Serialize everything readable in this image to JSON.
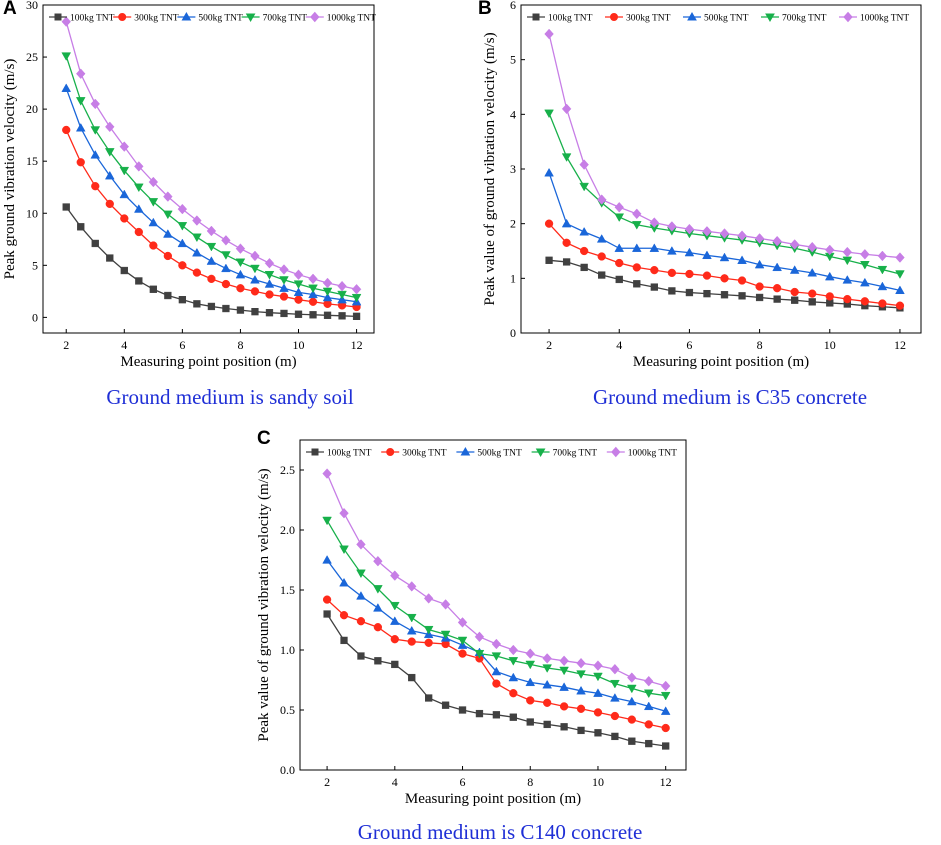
{
  "figure": {
    "panels": [
      {
        "letter": "A",
        "caption": "Ground medium is sandy soil"
      },
      {
        "letter": "B",
        "caption": "Ground medium is C35 concrete"
      },
      {
        "letter": "C",
        "caption": "Ground medium is C140 concrete"
      }
    ]
  },
  "series_style": [
    {
      "name": "100kg TNT",
      "color": "#404040",
      "marker": "square"
    },
    {
      "name": "300kg TNT",
      "color": "#ff2a1a",
      "marker": "circle"
    },
    {
      "name": "500kg TNT",
      "color": "#1a66d9",
      "marker": "triangle-up"
    },
    {
      "name": "700kg TNT",
      "color": "#17b04a",
      "marker": "triangle-down"
    },
    {
      "name": "1000kg TNT",
      "color": "#c77ee6",
      "marker": "diamond"
    }
  ],
  "chart_data": [
    {
      "type": "line",
      "panel": "A",
      "title": "",
      "xlabel": "Measuring point position (m)",
      "ylabel": "Peak ground vibration velocity (m/s)",
      "xlim": [
        1.2,
        12.6
      ],
      "ylim": [
        -1.5,
        30
      ],
      "xticks": [
        2,
        4,
        6,
        8,
        10,
        12
      ],
      "yticks": [
        0,
        5,
        10,
        15,
        20,
        25,
        30
      ],
      "x": [
        2,
        2.5,
        3,
        3.5,
        4,
        4.5,
        5,
        5.5,
        6,
        6.5,
        7,
        7.5,
        8,
        8.5,
        9,
        9.5,
        10,
        10.5,
        11,
        11.5,
        12
      ],
      "series": [
        {
          "name": "100kg TNT",
          "values": [
            10.6,
            8.7,
            7.1,
            5.7,
            4.5,
            3.5,
            2.7,
            2.1,
            1.7,
            1.3,
            1.05,
            0.85,
            0.7,
            0.55,
            0.45,
            0.38,
            0.3,
            0.25,
            0.2,
            0.15,
            0.1
          ]
        },
        {
          "name": "300kg TNT",
          "values": [
            18.0,
            14.9,
            12.6,
            10.9,
            9.5,
            8.2,
            6.9,
            5.9,
            5.0,
            4.3,
            3.7,
            3.2,
            2.8,
            2.5,
            2.2,
            2.0,
            1.7,
            1.5,
            1.3,
            1.15,
            1.0
          ]
        },
        {
          "name": "500kg TNT",
          "values": [
            22.0,
            18.2,
            15.6,
            13.6,
            11.8,
            10.4,
            9.1,
            8.0,
            7.1,
            6.2,
            5.4,
            4.7,
            4.1,
            3.6,
            3.2,
            2.8,
            2.4,
            2.2,
            1.9,
            1.7,
            1.5
          ]
        },
        {
          "name": "700kg TNT",
          "values": [
            25.1,
            20.8,
            18.0,
            15.9,
            14.1,
            12.5,
            11.1,
            9.9,
            8.8,
            7.7,
            6.8,
            6.0,
            5.3,
            4.7,
            4.1,
            3.6,
            3.2,
            2.8,
            2.5,
            2.2,
            1.9
          ]
        },
        {
          "name": "1000kg TNT",
          "values": [
            28.4,
            23.4,
            20.5,
            18.3,
            16.4,
            14.5,
            13.0,
            11.6,
            10.4,
            9.3,
            8.3,
            7.4,
            6.6,
            5.9,
            5.2,
            4.6,
            4.1,
            3.7,
            3.3,
            3.0,
            2.7
          ]
        }
      ]
    },
    {
      "type": "line",
      "panel": "B",
      "title": "",
      "xlabel": "Measuring point position (m)",
      "ylabel": "Peak value of ground vibration velocity (m/s)",
      "xlim": [
        1.2,
        12.6
      ],
      "ylim": [
        0,
        6
      ],
      "xticks": [
        2,
        4,
        6,
        8,
        10,
        12
      ],
      "yticks": [
        0,
        1,
        2,
        3,
        4,
        5,
        6
      ],
      "x": [
        2,
        2.5,
        3,
        3.5,
        4,
        4.5,
        5,
        5.5,
        6,
        6.5,
        7,
        7.5,
        8,
        8.5,
        9,
        9.5,
        10,
        10.5,
        11,
        11.5,
        12
      ],
      "series": [
        {
          "name": "100kg TNT",
          "values": [
            1.33,
            1.3,
            1.2,
            1.06,
            0.98,
            0.9,
            0.84,
            0.77,
            0.74,
            0.72,
            0.7,
            0.68,
            0.65,
            0.62,
            0.6,
            0.57,
            0.55,
            0.53,
            0.5,
            0.48,
            0.46
          ]
        },
        {
          "name": "300kg TNT",
          "values": [
            2.0,
            1.65,
            1.5,
            1.4,
            1.28,
            1.2,
            1.15,
            1.1,
            1.08,
            1.05,
            1.0,
            0.96,
            0.85,
            0.82,
            0.75,
            0.72,
            0.67,
            0.62,
            0.58,
            0.54,
            0.5
          ]
        },
        {
          "name": "500kg TNT",
          "values": [
            2.93,
            2.0,
            1.85,
            1.72,
            1.55,
            1.55,
            1.55,
            1.5,
            1.47,
            1.42,
            1.38,
            1.33,
            1.25,
            1.2,
            1.15,
            1.1,
            1.03,
            0.97,
            0.92,
            0.85,
            0.78
          ]
        },
        {
          "name": "700kg TNT",
          "values": [
            4.02,
            3.22,
            2.68,
            2.38,
            2.12,
            1.98,
            1.92,
            1.87,
            1.82,
            1.78,
            1.74,
            1.7,
            1.65,
            1.6,
            1.55,
            1.48,
            1.4,
            1.33,
            1.25,
            1.16,
            1.08
          ]
        },
        {
          "name": "1000kg TNT",
          "values": [
            5.47,
            4.1,
            3.08,
            2.44,
            2.3,
            2.18,
            2.02,
            1.95,
            1.9,
            1.86,
            1.82,
            1.78,
            1.73,
            1.68,
            1.62,
            1.57,
            1.52,
            1.48,
            1.44,
            1.41,
            1.38
          ]
        }
      ]
    },
    {
      "type": "line",
      "panel": "C",
      "title": "",
      "xlabel": "Measuring point position (m)",
      "ylabel": "Peak value of ground vibration velocity (m/s)",
      "xlim": [
        1.2,
        12.6
      ],
      "ylim": [
        0,
        2.75
      ],
      "xticks": [
        2,
        4,
        6,
        8,
        10,
        12
      ],
      "yticks": [
        0.0,
        0.5,
        1.0,
        1.5,
        2.0,
        2.5
      ],
      "x": [
        2,
        2.5,
        3,
        3.5,
        4,
        4.5,
        5,
        5.5,
        6,
        6.5,
        7,
        7.5,
        8,
        8.5,
        9,
        9.5,
        10,
        10.5,
        11,
        11.5,
        12
      ],
      "series": [
        {
          "name": "100kg TNT",
          "values": [
            1.3,
            1.08,
            0.95,
            0.91,
            0.88,
            0.77,
            0.6,
            0.54,
            0.5,
            0.47,
            0.46,
            0.44,
            0.4,
            0.38,
            0.36,
            0.33,
            0.31,
            0.28,
            0.24,
            0.22,
            0.2
          ]
        },
        {
          "name": "300kg TNT",
          "values": [
            1.42,
            1.29,
            1.24,
            1.19,
            1.09,
            1.07,
            1.06,
            1.05,
            0.97,
            0.93,
            0.72,
            0.64,
            0.58,
            0.56,
            0.53,
            0.51,
            0.48,
            0.45,
            0.42,
            0.38,
            0.35
          ]
        },
        {
          "name": "500kg TNT",
          "values": [
            1.75,
            1.56,
            1.45,
            1.35,
            1.24,
            1.16,
            1.13,
            1.1,
            1.04,
            0.98,
            0.82,
            0.77,
            0.73,
            0.71,
            0.69,
            0.66,
            0.64,
            0.6,
            0.57,
            0.53,
            0.49
          ]
        },
        {
          "name": "700kg TNT",
          "values": [
            2.08,
            1.84,
            1.64,
            1.51,
            1.37,
            1.27,
            1.17,
            1.13,
            1.08,
            0.97,
            0.95,
            0.91,
            0.88,
            0.85,
            0.83,
            0.8,
            0.78,
            0.72,
            0.68,
            0.64,
            0.62
          ]
        },
        {
          "name": "1000kg TNT",
          "values": [
            2.47,
            2.14,
            1.88,
            1.74,
            1.62,
            1.53,
            1.43,
            1.38,
            1.23,
            1.11,
            1.05,
            1.0,
            0.97,
            0.93,
            0.91,
            0.89,
            0.87,
            0.84,
            0.77,
            0.74,
            0.7
          ]
        }
      ]
    }
  ]
}
